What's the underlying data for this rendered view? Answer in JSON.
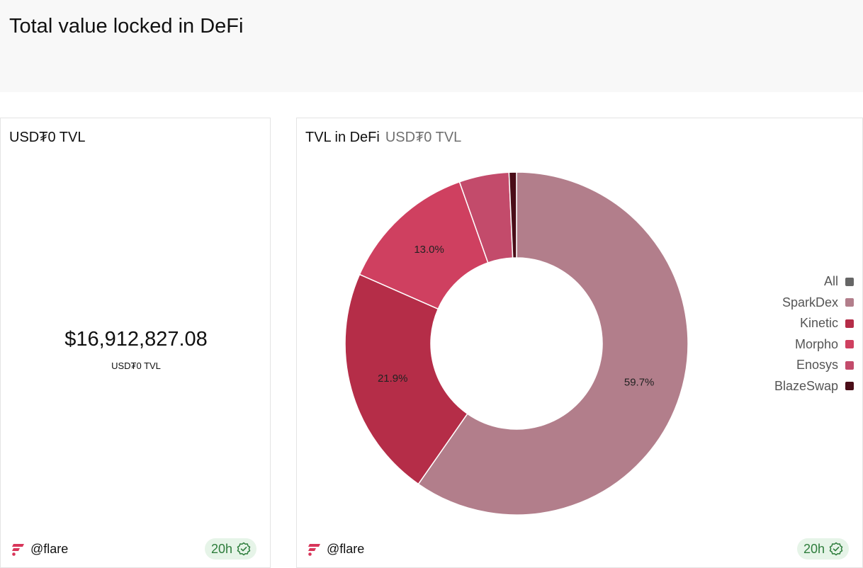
{
  "page": {
    "title": "Total value locked in DeFi"
  },
  "tvl_card": {
    "title": "USD₮0 TVL",
    "value": "$16,912,827.08",
    "value_label": "USD₮0 TVL",
    "brand": "@flare",
    "age": "20h"
  },
  "defi_card": {
    "title": "TVL in DeFi",
    "subtitle": "USD₮0 TVL",
    "brand": "@flare",
    "age": "20h"
  },
  "legend": [
    {
      "label": "All",
      "color": "#666666"
    },
    {
      "label": "SparkDex",
      "color": "#b27e8b"
    },
    {
      "label": "Kinetic",
      "color": "#b52d48"
    },
    {
      "label": "Morpho",
      "color": "#cf4060"
    },
    {
      "label": "Enosys",
      "color": "#c34b6b"
    },
    {
      "label": "BlazeSwap",
      "color": "#4a0d18"
    }
  ],
  "chart_data": {
    "type": "pie",
    "donut": true,
    "categories": [
      "SparkDex",
      "Kinetic",
      "Morpho",
      "Enosys",
      "BlazeSwap"
    ],
    "values": [
      59.7,
      21.9,
      13.0,
      4.7,
      0.7
    ],
    "labels": [
      "59.7%",
      "21.9%",
      "13.0%",
      "",
      ""
    ],
    "colors": [
      "#b27e8b",
      "#b52d48",
      "#cf4060",
      "#c34b6b",
      "#4a0d18"
    ],
    "title": "TVL in DeFi",
    "legend_position": "right"
  }
}
